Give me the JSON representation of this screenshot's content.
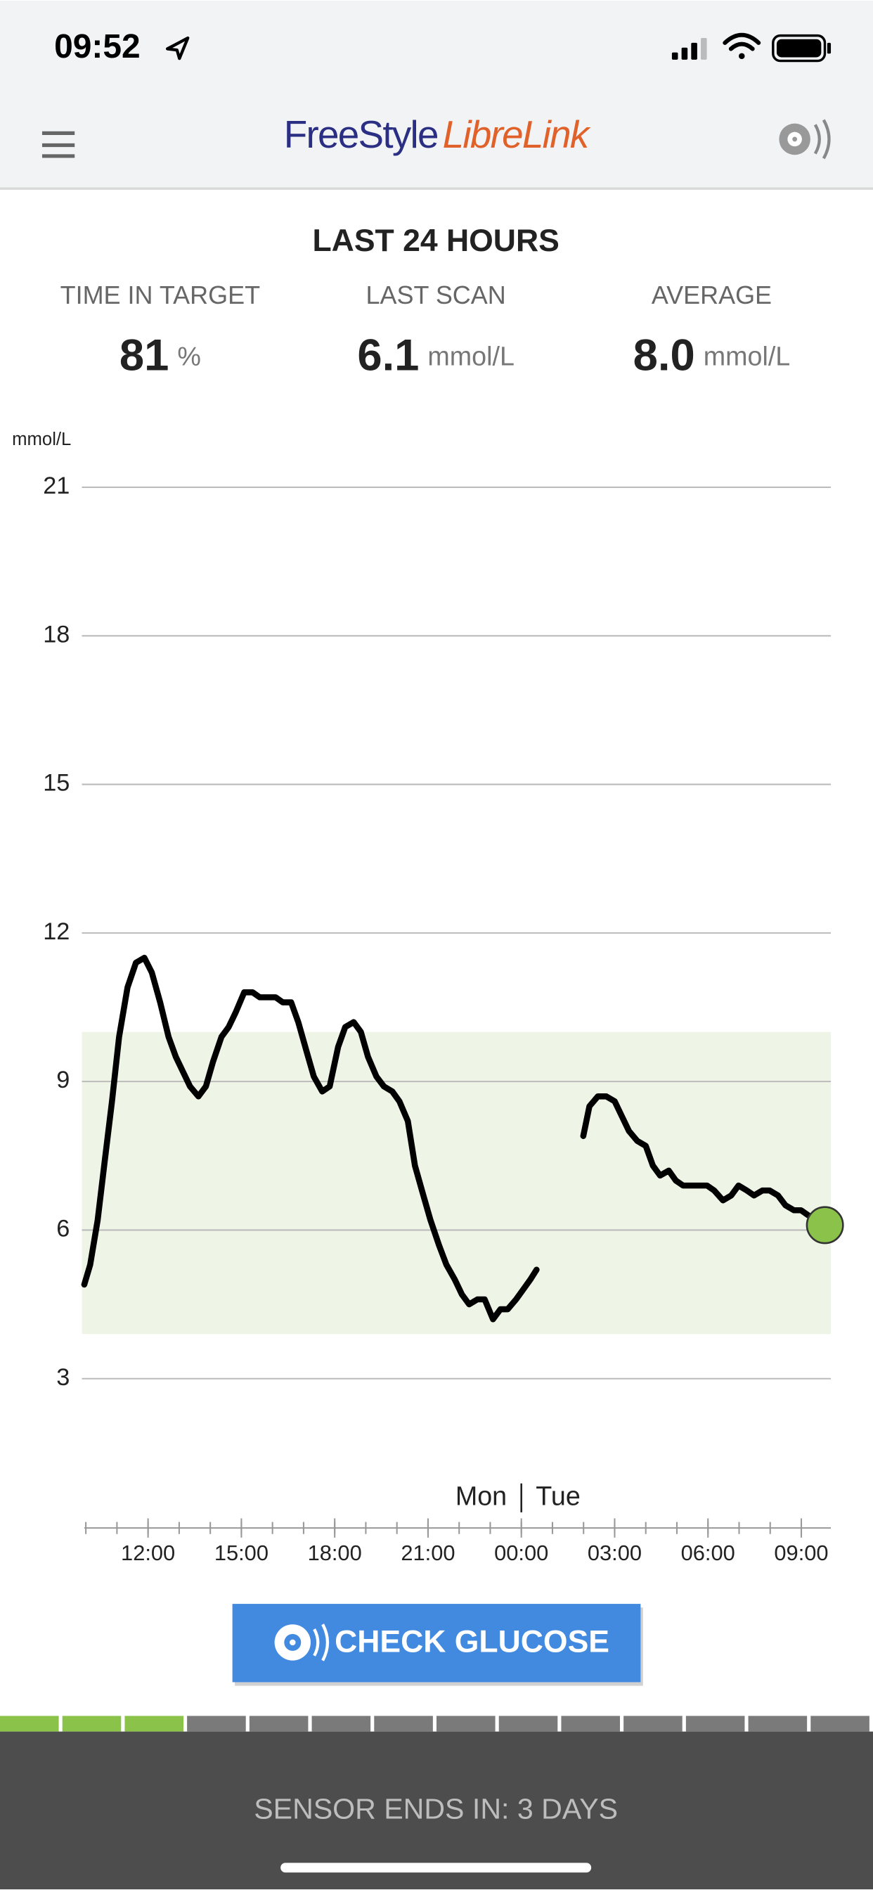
{
  "status_bar": {
    "time": "09:52"
  },
  "header": {
    "brand": "FreeStyle",
    "product": "LibreLink"
  },
  "summary": {
    "title": "LAST 24 HOURS",
    "stats": [
      {
        "label": "TIME IN TARGET",
        "value": "81",
        "unit": "%"
      },
      {
        "label": "LAST SCAN",
        "value": "6.1",
        "unit": "mmol/L"
      },
      {
        "label": "AVERAGE",
        "value": "8.0",
        "unit": "mmol/L"
      }
    ]
  },
  "chart_data": {
    "type": "line",
    "y_label": "mmol/L",
    "color": "#000000",
    "grid": true,
    "x": [
      9.95,
      10.14,
      10.38,
      10.61,
      10.84,
      11.07,
      11.34,
      11.61,
      11.88,
      12.12,
      12.39,
      12.66,
      12.89,
      13.12,
      13.35,
      13.62,
      13.86,
      14.09,
      14.36,
      14.59,
      14.82,
      15.09,
      15.36,
      15.59,
      15.83,
      16.1,
      16.33,
      16.6,
      16.83,
      17.1,
      17.33,
      17.6,
      17.84,
      18.11,
      18.34,
      18.61,
      18.84,
      19.07,
      19.34,
      19.58,
      19.85,
      20.08,
      20.35,
      20.58,
      20.85,
      21.08,
      21.35,
      21.59,
      21.86,
      22.09,
      22.32,
      22.59,
      22.82,
      23.09,
      23.33,
      23.56,
      23.83,
      24.06,
      24.29,
      24.49,
      25.2,
      25.99,
      26.19,
      26.46,
      26.73,
      27.0,
      27.23,
      27.46,
      27.73,
      28.0,
      28.23,
      28.46,
      28.74,
      28.97,
      29.2,
      29.47,
      29.7,
      29.97,
      30.2,
      30.48,
      30.75,
      30.98,
      31.25,
      31.48,
      31.75,
      31.98,
      32.25,
      32.49,
      32.76,
      32.99,
      33.22,
      33.53,
      33.76
    ],
    "values": [
      4.9,
      5.3,
      6.2,
      7.4,
      8.6,
      9.9,
      10.9,
      11.4,
      11.5,
      11.2,
      10.6,
      9.9,
      9.5,
      9.2,
      8.9,
      8.7,
      8.9,
      9.4,
      9.9,
      10.1,
      10.4,
      10.8,
      10.8,
      10.7,
      10.7,
      10.7,
      10.6,
      10.6,
      10.2,
      9.6,
      9.1,
      8.8,
      8.9,
      9.7,
      10.1,
      10.2,
      10.0,
      9.5,
      9.1,
      8.9,
      8.8,
      8.6,
      8.2,
      7.3,
      6.7,
      6.2,
      5.7,
      5.3,
      5.0,
      4.7,
      4.5,
      4.6,
      4.6,
      4.2,
      4.4,
      4.4,
      4.6,
      4.8,
      5.0,
      5.2,
      null,
      7.9,
      8.5,
      8.7,
      8.7,
      8.6,
      8.3,
      8.0,
      7.8,
      7.7,
      7.3,
      7.1,
      7.2,
      7.0,
      6.9,
      6.9,
      6.9,
      6.9,
      6.8,
      6.6,
      6.7,
      6.9,
      6.8,
      6.7,
      6.8,
      6.8,
      6.7,
      6.5,
      6.4,
      6.4,
      6.3,
      6.2,
      6.1
    ],
    "current": {
      "x": 33.76,
      "value": 6.1,
      "color": "#8bc34a"
    },
    "target_range": [
      3.9,
      10.0
    ],
    "target_color": "#eef5e6",
    "xlim": [
      9.95,
      33.95
    ],
    "xticks": [
      {
        "value": 12,
        "label": "12:00"
      },
      {
        "value": 15,
        "label": "15:00"
      },
      {
        "value": 18,
        "label": "18:00"
      },
      {
        "value": 21,
        "label": "21:00"
      },
      {
        "value": 24,
        "label": "00:00"
      },
      {
        "value": 27,
        "label": "03:00"
      },
      {
        "value": 30,
        "label": "06:00"
      },
      {
        "value": 33,
        "label": "09:00"
      }
    ],
    "ylim": [
      3,
      21
    ],
    "yticks": [
      3,
      6,
      9,
      12,
      15,
      18,
      21
    ],
    "day_boundary": 24,
    "day_labels": [
      "Mon",
      "Tue"
    ]
  },
  "button": {
    "label": "CHECK GLUCOSE"
  },
  "sensor": {
    "total_segments": 14,
    "elapsed_segments": 3,
    "status": "SENSOR ENDS IN: 3 DAYS"
  }
}
